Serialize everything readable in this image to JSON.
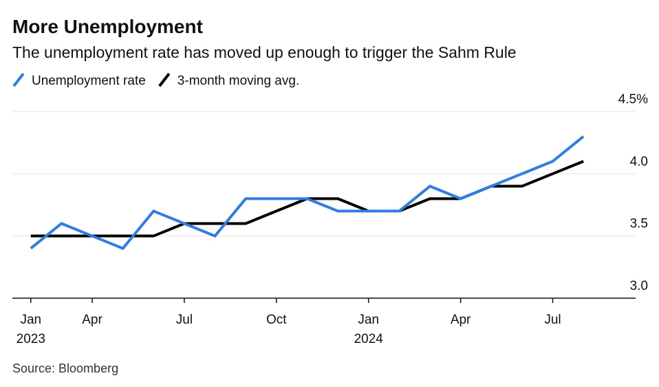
{
  "chart_data": {
    "type": "line",
    "title": "More Unemployment",
    "subtitle": "The unemployment rate has moved up enough to trigger the Sahm Rule",
    "source": "Source: Bloomberg",
    "x": [
      0,
      1,
      2,
      3,
      4,
      5,
      6,
      7,
      8,
      9,
      10,
      11,
      12,
      13,
      14,
      15,
      16,
      17,
      18
    ],
    "series": [
      {
        "name": "Unemployment rate",
        "color": "#2f7de1",
        "values": [
          3.4,
          3.6,
          3.5,
          3.4,
          3.7,
          3.6,
          3.5,
          3.8,
          3.8,
          3.8,
          3.7,
          3.7,
          3.7,
          3.9,
          3.8,
          3.9,
          4.0,
          4.1,
          4.3
        ]
      },
      {
        "name": "3-month moving avg.",
        "color": "#000000",
        "values": [
          3.5,
          3.5,
          3.5,
          3.5,
          3.5,
          3.6,
          3.6,
          3.6,
          3.7,
          3.8,
          3.8,
          3.7,
          3.7,
          3.8,
          3.8,
          3.9,
          3.9,
          4.0,
          4.1
        ]
      }
    ],
    "xlim": [
      -0.6,
      19.7
    ],
    "xticks": [
      {
        "value": 0,
        "label": "Jan"
      },
      {
        "value": 2,
        "label": "Apr"
      },
      {
        "value": 5,
        "label": "Jul"
      },
      {
        "value": 8,
        "label": "Oct"
      },
      {
        "value": 11,
        "label": "Jan"
      },
      {
        "value": 14,
        "label": "Apr"
      },
      {
        "value": 17,
        "label": "Jul"
      }
    ],
    "x_year_labels": [
      {
        "value": 0,
        "label": "2023"
      },
      {
        "value": 11,
        "label": "2024"
      }
    ],
    "ylim": [
      3.0,
      4.5
    ],
    "yticks": [
      {
        "value": 3.0,
        "label": "3.0"
      },
      3.5,
      {
        "value": 4.0,
        "label": "4.0"
      },
      {
        "value": 4.5,
        "label": "4.5%"
      }
    ],
    "grid": true
  }
}
